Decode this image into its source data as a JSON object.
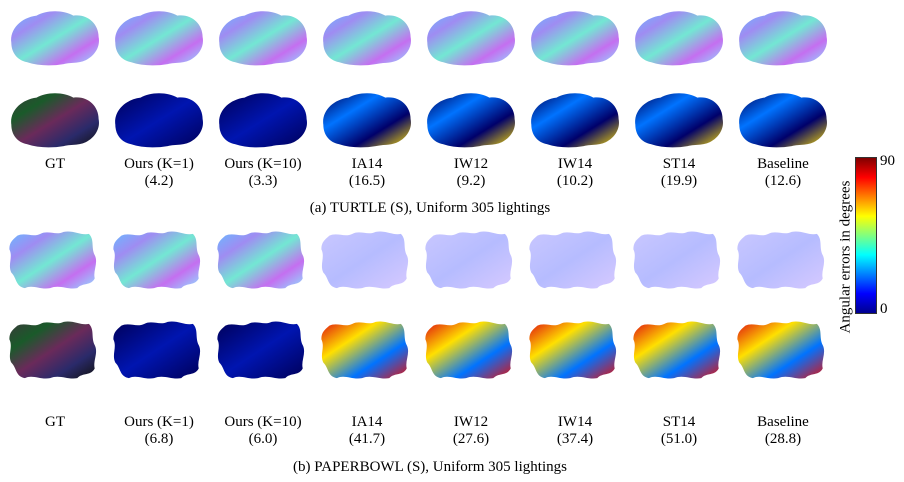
{
  "colors": {
    "normal_map": [
      "#6ab9ff",
      "#9f8cf2",
      "#73e7d3",
      "#c46ff0",
      "#8ee0ff"
    ],
    "normal_flat": [
      "#c9c7ff",
      "#b6bcff",
      "#d6c9ff"
    ],
    "error_low": "#00005a",
    "error_mid": "#0073ff",
    "error_high": "#ffe000",
    "error_max": "#e01010",
    "colorbar": [
      "#00008f",
      "#0000ff",
      "#0080ff",
      "#00ffff",
      "#80ff80",
      "#ffff00",
      "#ff8000",
      "#ff0000",
      "#800000"
    ]
  },
  "methods": [
    "GT",
    "Ours (K=1)",
    "Ours (K=10)",
    "IA14",
    "IW12",
    "IW14",
    "ST14",
    "Baseline"
  ],
  "panels": [
    {
      "caption": "(a) TURTLE (S), Uniform 305 lightings",
      "errors": [
        "",
        "(4.2)",
        "(3.3)",
        "(16.5)",
        "(9.2)",
        "(10.2)",
        "(19.9)",
        "(12.6)"
      ]
    },
    {
      "caption": "(b) PAPERBOWL (S), Uniform 305 lightings",
      "errors": [
        "",
        "(6.8)",
        "(6.0)",
        "(41.7)",
        "(27.6)",
        "(37.4)",
        "(51.0)",
        "(28.8)"
      ]
    }
  ],
  "colorbar": {
    "max_label": "90",
    "min_label": "0",
    "axis_label": "Angular errors in degrees"
  }
}
